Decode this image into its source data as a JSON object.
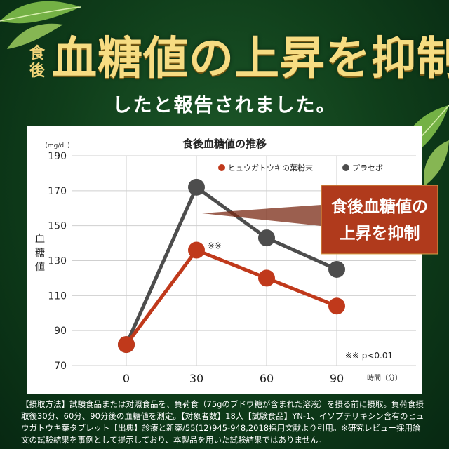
{
  "headline": {
    "small": "食後",
    "main": "血糖値の上昇を抑制",
    "sub": "したと報告されました。"
  },
  "chart_data": {
    "type": "line",
    "title": "食後血糖値の推移",
    "unit": "(mg/dL)",
    "ylabel": "血糖値",
    "xlabel": "時間（分）",
    "x": [
      0,
      30,
      60,
      90
    ],
    "xticks": [
      "0",
      "30",
      "60",
      "90"
    ],
    "yticks": [
      "70",
      "90",
      "110",
      "130",
      "150",
      "170",
      "190"
    ],
    "ylim": [
      70,
      190
    ],
    "grid": true,
    "legend_position": "top-right",
    "series": [
      {
        "name": "ヒュウガトウキの葉粉末",
        "values": [
          82,
          136,
          120,
          104
        ],
        "color": "#c0391b"
      },
      {
        "name": "プラセボ",
        "values": [
          82,
          172,
          143,
          125
        ],
        "color": "#4d4d4d"
      }
    ],
    "annotations": {
      "point_mark": "※※",
      "significance": "※※ p<0.01"
    },
    "callout": {
      "line1": "食後血糖値の",
      "line2": "上昇を抑制",
      "color": "#b03a1c"
    }
  },
  "notes": "【摂取方法】試験食品または対照食品を、負荷食（75gのブドウ糖が含まれた溶液）を摂る前に摂取。負荷食摂取後30分、60分、90分後の血糖値を測定。【対象者数】18人【試験食品】YN-1、イソプテリキシン含有のヒュウガトウキ葉タブレット【出典】診療と新薬/55(12)945-948,2018採用文献より引用。※研究レビュー採用論文の試験結果を事例として提示しており、本製品を用いた試験結果ではありません。"
}
